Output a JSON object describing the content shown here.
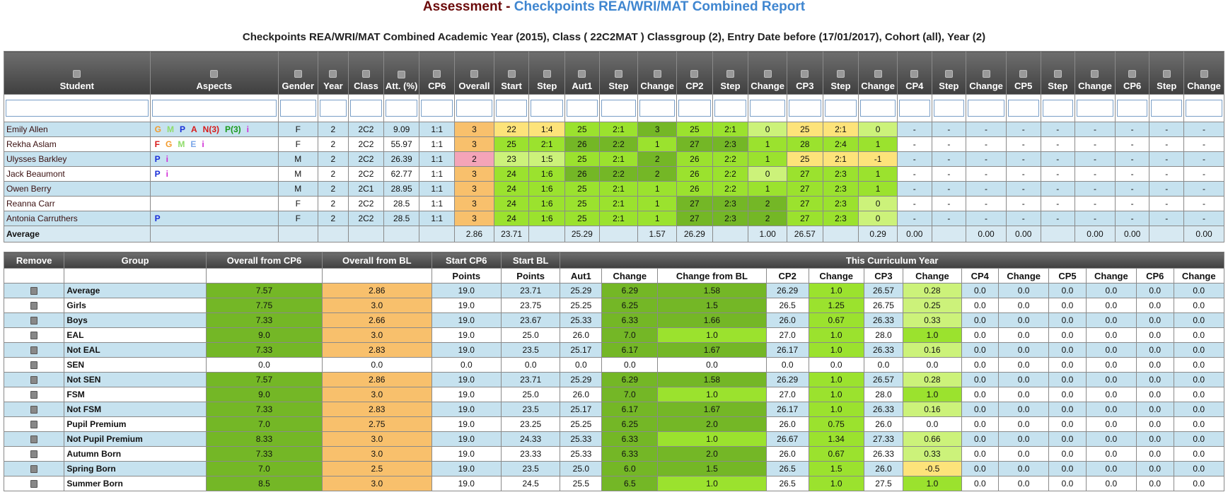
{
  "title": {
    "part1": "Assessment",
    "sep": " - ",
    "part2": "Checkpoints REA/WRI/MAT Combined Report"
  },
  "subtitle": "Checkpoints REA/WRI/MAT Combined Academic Year (2015), Class ( 22C2MAT ) Classgroup (2), Entry Date before (17/01/2017), Cohort (all), Year (2)",
  "colors": {
    "dark_green": "#74b726",
    "mid_green": "#9be22e",
    "light_green": "#ccf27a",
    "orange": "#f8c06c",
    "yellow": "#fde37a",
    "pink": "#f4a4b8",
    "row_blue": "#c6e2ef"
  },
  "student_table": {
    "headers": [
      "Student",
      "Aspects",
      "Gender",
      "Year",
      "Class",
      "Att. (%)",
      "CP6",
      "Overall",
      "Start",
      "Step",
      "Aut1",
      "Step",
      "Change",
      "CP2",
      "Step",
      "Change",
      "CP3",
      "Step",
      "Change",
      "CP4",
      "Step",
      "Change",
      "CP5",
      "Step",
      "Change",
      "CP6",
      "Step",
      "Change"
    ],
    "rows": [
      {
        "cells": [
          "Emily Allen",
          "",
          "F",
          "2",
          "2C2",
          "9.09",
          "1:1",
          "3",
          "22",
          "1:4",
          "25",
          "2:1",
          "3",
          "25",
          "2:1",
          "0",
          "25",
          "2:1",
          "0",
          "-",
          "-",
          "-",
          "-",
          "-",
          "-",
          "-",
          "-",
          "-"
        ],
        "aspects": [
          [
            "G",
            "#f39b2c"
          ],
          [
            "M",
            "#8fdc6a"
          ],
          [
            "P",
            "#1a2fd8"
          ],
          [
            "A",
            "#d81a1a"
          ],
          [
            "N(3)",
            "#d81a1a"
          ],
          [
            "P(3)",
            "#1a9a1a"
          ],
          [
            "i",
            "#d12cd6"
          ]
        ]
      },
      {
        "cells": [
          "Rekha Aslam",
          "",
          "F",
          "2",
          "2C2",
          "55.97",
          "1:1",
          "3",
          "25",
          "2:1",
          "26",
          "2:2",
          "1",
          "27",
          "2:3",
          "1",
          "28",
          "2:4",
          "1",
          "-",
          "-",
          "-",
          "-",
          "-",
          "-",
          "-",
          "-",
          "-"
        ],
        "aspects": [
          [
            "F",
            "#d81a1a"
          ],
          [
            "G",
            "#f39b2c"
          ],
          [
            "M",
            "#8fdc6a"
          ],
          [
            "E",
            "#7aa6e8"
          ],
          [
            "i",
            "#d12cd6"
          ]
        ]
      },
      {
        "cells": [
          "Ulysses Barkley",
          "",
          "M",
          "2",
          "2C2",
          "26.39",
          "1:1",
          "2",
          "23",
          "1:5",
          "25",
          "2:1",
          "2",
          "26",
          "2:2",
          "1",
          "25",
          "2:1",
          "-1",
          "-",
          "-",
          "-",
          "-",
          "-",
          "-",
          "-",
          "-",
          "-"
        ],
        "aspects": [
          [
            "P",
            "#1a2fd8"
          ],
          [
            "i",
            "#d12cd6"
          ]
        ]
      },
      {
        "cells": [
          "Jack Beaumont",
          "",
          "M",
          "2",
          "2C2",
          "62.77",
          "1:1",
          "3",
          "24",
          "1:6",
          "26",
          "2:2",
          "2",
          "26",
          "2:2",
          "0",
          "27",
          "2:3",
          "1",
          "-",
          "-",
          "-",
          "-",
          "-",
          "-",
          "-",
          "-",
          "-"
        ],
        "aspects": [
          [
            "P",
            "#1a2fd8"
          ],
          [
            "i",
            "#d12cd6"
          ]
        ]
      },
      {
        "cells": [
          "Owen Berry",
          "",
          "M",
          "2",
          "2C1",
          "28.95",
          "1:1",
          "3",
          "24",
          "1:6",
          "25",
          "2:1",
          "1",
          "26",
          "2:2",
          "1",
          "27",
          "2:3",
          "1",
          "-",
          "-",
          "-",
          "-",
          "-",
          "-",
          "-",
          "-",
          "-"
        ],
        "aspects": []
      },
      {
        "cells": [
          "Reanna Carr",
          "",
          "F",
          "2",
          "2C2",
          "28.5",
          "1:1",
          "3",
          "24",
          "1:6",
          "25",
          "2:1",
          "1",
          "27",
          "2:3",
          "2",
          "27",
          "2:3",
          "0",
          "-",
          "-",
          "-",
          "-",
          "-",
          "-",
          "-",
          "-",
          "-"
        ],
        "aspects": []
      },
      {
        "cells": [
          "Antonia Carruthers",
          "",
          "F",
          "2",
          "2C2",
          "28.5",
          "1:1",
          "3",
          "24",
          "1:6",
          "25",
          "2:1",
          "1",
          "27",
          "2:3",
          "2",
          "27",
          "2:3",
          "0",
          "-",
          "-",
          "-",
          "-",
          "-",
          "-",
          "-",
          "-",
          "-"
        ],
        "aspects": [
          [
            "P",
            "#1a2fd8"
          ]
        ]
      }
    ],
    "average": [
      "Average",
      "",
      "",
      "",
      "",
      "",
      "",
      "2.86",
      "23.71",
      "",
      "25.29",
      "",
      "1.57",
      "26.29",
      "",
      "1.00",
      "26.57",
      "",
      "0.29",
      "0.00",
      "",
      "0.00",
      "0.00",
      "",
      "0.00",
      "0.00",
      "",
      "0.00"
    ]
  },
  "group_table": {
    "header_top": [
      "Remove",
      "Group",
      "Overall from CP6",
      "Overall from BL",
      "Start CP6",
      "Start BL",
      "This Curriculum Year"
    ],
    "header_sub": [
      "",
      "",
      "",
      "",
      "Points",
      "Points",
      "Aut1",
      "Change",
      "Change from BL",
      "CP2",
      "Change",
      "CP3",
      "Change",
      "CP4",
      "Change",
      "CP5",
      "Change",
      "CP6",
      "Change"
    ],
    "rows": [
      [
        "Average",
        "7.57",
        "2.86",
        "19.0",
        "23.71",
        "25.29",
        "6.29",
        "1.58",
        "26.29",
        "1.0",
        "26.57",
        "0.28",
        "0.0",
        "0.0",
        "0.0",
        "0.0",
        "0.0",
        "0.0"
      ],
      [
        "Girls",
        "7.75",
        "3.0",
        "19.0",
        "23.75",
        "25.25",
        "6.25",
        "1.5",
        "26.5",
        "1.25",
        "26.75",
        "0.25",
        "0.0",
        "0.0",
        "0.0",
        "0.0",
        "0.0",
        "0.0"
      ],
      [
        "Boys",
        "7.33",
        "2.66",
        "19.0",
        "23.67",
        "25.33",
        "6.33",
        "1.66",
        "26.0",
        "0.67",
        "26.33",
        "0.33",
        "0.0",
        "0.0",
        "0.0",
        "0.0",
        "0.0",
        "0.0"
      ],
      [
        "EAL",
        "9.0",
        "3.0",
        "19.0",
        "25.0",
        "26.0",
        "7.0",
        "1.0",
        "27.0",
        "1.0",
        "28.0",
        "1.0",
        "0.0",
        "0.0",
        "0.0",
        "0.0",
        "0.0",
        "0.0"
      ],
      [
        "Not EAL",
        "7.33",
        "2.83",
        "19.0",
        "23.5",
        "25.17",
        "6.17",
        "1.67",
        "26.17",
        "1.0",
        "26.33",
        "0.16",
        "0.0",
        "0.0",
        "0.0",
        "0.0",
        "0.0",
        "0.0"
      ],
      [
        "SEN",
        "0.0",
        "0.0",
        "0.0",
        "0.0",
        "0.0",
        "0.0",
        "0.0",
        "0.0",
        "0.0",
        "0.0",
        "0.0",
        "0.0",
        "0.0",
        "0.0",
        "0.0",
        "0.0",
        "0.0"
      ],
      [
        "Not SEN",
        "7.57",
        "2.86",
        "19.0",
        "23.71",
        "25.29",
        "6.29",
        "1.58",
        "26.29",
        "1.0",
        "26.57",
        "0.28",
        "0.0",
        "0.0",
        "0.0",
        "0.0",
        "0.0",
        "0.0"
      ],
      [
        "FSM",
        "9.0",
        "3.0",
        "19.0",
        "25.0",
        "26.0",
        "7.0",
        "1.0",
        "27.0",
        "1.0",
        "28.0",
        "1.0",
        "0.0",
        "0.0",
        "0.0",
        "0.0",
        "0.0",
        "0.0"
      ],
      [
        "Not FSM",
        "7.33",
        "2.83",
        "19.0",
        "23.5",
        "25.17",
        "6.17",
        "1.67",
        "26.17",
        "1.0",
        "26.33",
        "0.16",
        "0.0",
        "0.0",
        "0.0",
        "0.0",
        "0.0",
        "0.0"
      ],
      [
        "Pupil Premium",
        "7.0",
        "2.75",
        "19.0",
        "23.25",
        "25.25",
        "6.25",
        "2.0",
        "26.0",
        "0.75",
        "26.0",
        "0.0",
        "0.0",
        "0.0",
        "0.0",
        "0.0",
        "0.0",
        "0.0"
      ],
      [
        "Not Pupil Premium",
        "8.33",
        "3.0",
        "19.0",
        "24.33",
        "25.33",
        "6.33",
        "1.0",
        "26.67",
        "1.34",
        "27.33",
        "0.66",
        "0.0",
        "0.0",
        "0.0",
        "0.0",
        "0.0",
        "0.0"
      ],
      [
        "Autumn Born",
        "7.33",
        "3.0",
        "19.0",
        "23.33",
        "25.33",
        "6.33",
        "2.0",
        "26.0",
        "0.67",
        "26.33",
        "0.33",
        "0.0",
        "0.0",
        "0.0",
        "0.0",
        "0.0",
        "0.0"
      ],
      [
        "Spring Born",
        "7.0",
        "2.5",
        "19.0",
        "23.5",
        "25.0",
        "6.0",
        "1.5",
        "26.5",
        "1.5",
        "26.0",
        "-0.5",
        "0.0",
        "0.0",
        "0.0",
        "0.0",
        "0.0",
        "0.0"
      ],
      [
        "Summer Born",
        "8.5",
        "3.0",
        "19.0",
        "24.5",
        "25.5",
        "6.5",
        "1.0",
        "26.5",
        "1.0",
        "27.5",
        "1.0",
        "0.0",
        "0.0",
        "0.0",
        "0.0",
        "0.0",
        "0.0"
      ]
    ]
  },
  "icons": {
    "sort": "sort-toggle-icon",
    "remove": "trash-bin-icon"
  }
}
